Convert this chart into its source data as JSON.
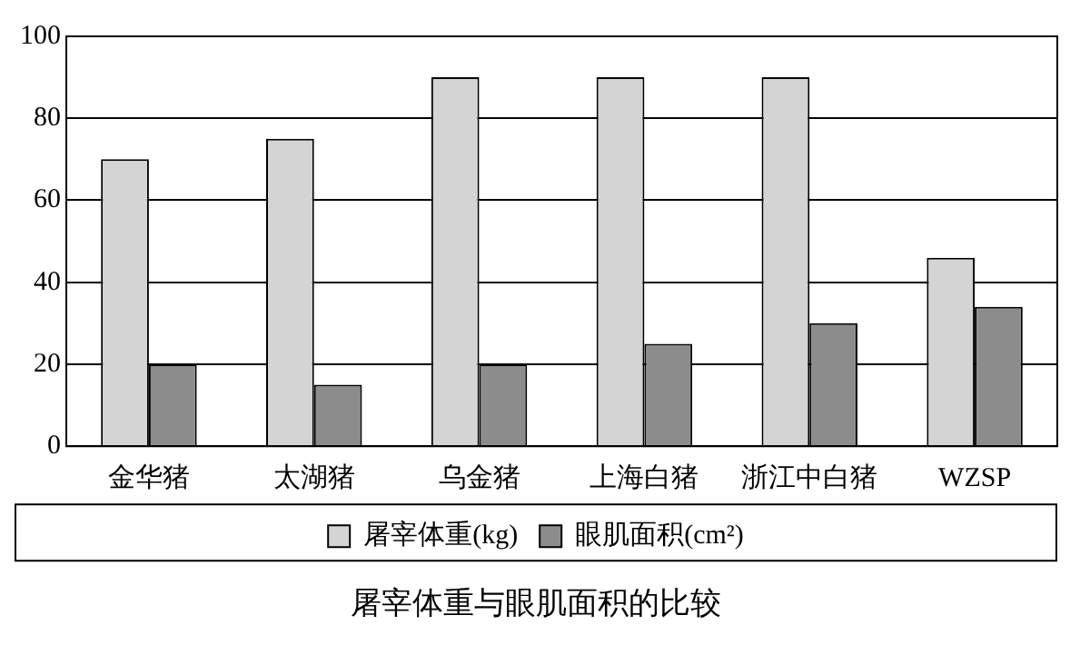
{
  "chart_data": {
    "type": "bar",
    "title": "屠宰体重与眼肌面积的比较",
    "categories": [
      "金华猪",
      "太湖猪",
      "乌金猪",
      "上海白猪",
      "浙江中白猪",
      "WZSP"
    ],
    "series": [
      {
        "name": "屠宰体重(kg)",
        "color": "#d4d4d4",
        "values": [
          70,
          75,
          90,
          90,
          90,
          46
        ]
      },
      {
        "name": "眼肌面积(cm²)",
        "color": "#8c8c8c",
        "values": [
          20,
          15,
          20,
          25,
          30,
          34
        ]
      }
    ],
    "ylim": [
      0,
      100
    ],
    "yticks": [
      0,
      20,
      40,
      60,
      80,
      100
    ],
    "grid": "y",
    "legend": "bottom"
  }
}
